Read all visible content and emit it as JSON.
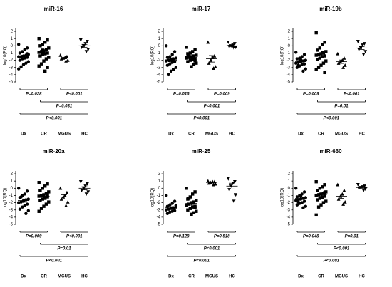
{
  "chart_data": [
    {
      "type": "scatter",
      "title": "miR-16",
      "ylabel": "log10(RQ)",
      "ylim": [
        -5,
        2.4
      ],
      "yticks": [
        2,
        1,
        0,
        -1,
        -2,
        -3,
        -4,
        -5
      ],
      "series": [
        {
          "name": "Dx",
          "marker": "circle",
          "values": [
            0.2,
            -0.3,
            -0.5,
            -0.8,
            -1.0,
            -1.2,
            -1.3,
            -1.4,
            -1.5,
            -1.5,
            -1.6,
            -1.7,
            -1.8,
            -2.0,
            -2.2,
            -2.4,
            -2.6,
            -2.9,
            -3.2,
            -1.1
          ],
          "mean": -1.5,
          "sem": 0.2
        },
        {
          "name": "CR",
          "marker": "square",
          "values": [
            1.0,
            0.8,
            0.5,
            0.2,
            0,
            -0.3,
            -0.5,
            -0.7,
            -0.8,
            -0.9,
            -1.0,
            -1.1,
            -1.2,
            -1.4,
            -1.6,
            -1.8,
            -2.1,
            -2.5,
            -2.8,
            -3.0,
            -3.5,
            -0.6
          ],
          "mean": -1.0,
          "sem": 0.22
        },
        {
          "name": "MGUS",
          "marker": "triangle-up",
          "values": [
            -1.3,
            -1.5,
            -1.6,
            -1.7,
            -1.8,
            -2.0,
            -2.1
          ],
          "mean": -1.7,
          "sem": 0.1
        },
        {
          "name": "HC",
          "marker": "triangle-down",
          "values": [
            0.8,
            0.6,
            0.3,
            0,
            -0.2,
            -0.5,
            -0.8
          ],
          "mean": 0,
          "sem": 0.2
        }
      ],
      "comparisons": [
        {
          "label": "P=0.028"
        },
        {
          "label": "P<0.001"
        },
        {
          "label": "P=0.031"
        },
        {
          "label": "P<0.001"
        }
      ]
    },
    {
      "type": "scatter",
      "title": "miR-17",
      "ylabel": "log10(RQ)",
      "ylim": [
        -5,
        2.4
      ],
      "yticks": [
        2,
        1,
        0,
        -1,
        -2,
        -3,
        -4,
        -5
      ],
      "series": [
        {
          "name": "Dx",
          "marker": "circle",
          "values": [
            0,
            -0.8,
            -1.2,
            -1.5,
            -1.6,
            -1.7,
            -1.8,
            -1.9,
            -2.0,
            -2.1,
            -2.2,
            -2.3,
            -2.5,
            -2.7,
            -3.0,
            -3.3,
            -3.5,
            -4.0
          ],
          "mean": -2.0,
          "sem": 0.2
        },
        {
          "name": "CR",
          "marker": "square",
          "values": [
            -0.2,
            -0.5,
            -0.8,
            -1.0,
            -1.1,
            -1.3,
            -1.4,
            -1.5,
            -1.6,
            -1.7,
            -1.8,
            -1.9,
            -2.0,
            -2.2,
            -2.4,
            -2.6,
            -2.9,
            -1.2,
            -1.6,
            -2.1
          ],
          "mean": -1.6,
          "sem": 0.15
        },
        {
          "name": "MGUS",
          "marker": "triangle-up",
          "values": [
            0.5,
            -1.4,
            -1.6,
            -2.0,
            -2.4,
            -2.9,
            -3.1
          ],
          "mean": -1.8,
          "sem": 0.45
        },
        {
          "name": "HC",
          "marker": "triangle-down",
          "values": [
            0.5,
            0.3,
            0.1,
            0,
            -0.1,
            -0.2,
            -0.3
          ],
          "mean": 0,
          "sem": 0.1
        }
      ],
      "comparisons": [
        {
          "label": "P=0.016"
        },
        {
          "label": "P=0.009"
        },
        {
          "label": "P<0.001"
        },
        {
          "label": "P<0.001"
        }
      ]
    },
    {
      "type": "scatter",
      "title": "miR-19b",
      "ylabel": "log10(RQ)",
      "ylim": [
        -5,
        2.4
      ],
      "yticks": [
        2,
        1,
        0,
        -1,
        -2,
        -3,
        -4,
        -5
      ],
      "series": [
        {
          "name": "Dx",
          "marker": "circle",
          "values": [
            -0.9,
            -1.2,
            -1.5,
            -1.7,
            -1.8,
            -2.0,
            -2.1,
            -2.2,
            -2.3,
            -2.4,
            -2.5,
            -2.6,
            -2.8,
            -3.0,
            -3.2,
            -3.5,
            -1.9,
            -2.7
          ],
          "mean": -2.2,
          "sem": 0.17
        },
        {
          "name": "CR",
          "marker": "square",
          "values": [
            1.8,
            0.5,
            0.2,
            -0.3,
            -0.6,
            -0.8,
            -1.0,
            -1.1,
            -1.2,
            -1.3,
            -1.4,
            -1.5,
            -1.7,
            -1.9,
            -2.1,
            -2.4,
            -2.7,
            -3.0,
            -3.3,
            -3.7,
            -0.9
          ],
          "mean": -1.4,
          "sem": 0.25
        },
        {
          "name": "MGUS",
          "marker": "triangle-up",
          "values": [
            -1.1,
            -1.7,
            -2.0,
            -2.2,
            -2.4,
            -2.7,
            -3.0
          ],
          "mean": -2.2,
          "sem": 0.24
        },
        {
          "name": "HC",
          "marker": "triangle-down",
          "values": [
            0.6,
            0.3,
            0.1,
            -0.3,
            -0.5,
            -0.8,
            -1.2
          ],
          "mean": -0.3,
          "sem": 0.2
        }
      ],
      "comparisons": [
        {
          "label": "P=0.009"
        },
        {
          "label": "P<0.001"
        },
        {
          "label": "P=0.01"
        },
        {
          "label": "P<0.001"
        }
      ]
    },
    {
      "type": "scatter",
      "title": "miR-20a",
      "ylabel": "log10(RQ)",
      "ylim": [
        -5,
        2.4
      ],
      "yticks": [
        2,
        1,
        0,
        -1,
        -2,
        -3,
        -4,
        -5
      ],
      "series": [
        {
          "name": "Dx",
          "marker": "circle",
          "values": [
            0,
            -0.4,
            -0.8,
            -1.0,
            -1.3,
            -1.5,
            -1.6,
            -1.8,
            -1.9,
            -2.0,
            -2.2,
            -2.4,
            -2.6,
            -2.9,
            -3.1,
            -3.5,
            -1.7,
            -1.2
          ],
          "mean": -1.7,
          "sem": 0.22
        },
        {
          "name": "CR",
          "marker": "square",
          "values": [
            0.8,
            0.6,
            0.3,
            0,
            -0.3,
            -0.5,
            -0.7,
            -0.9,
            -1.0,
            -1.1,
            -1.2,
            -1.3,
            -1.5,
            -1.7,
            -1.9,
            -2.2,
            -2.5,
            -2.8,
            -3.2,
            -0.8,
            -1.4
          ],
          "mean": -1.1,
          "sem": 0.22
        },
        {
          "name": "MGUS",
          "marker": "triangle-up",
          "values": [
            0,
            -0.6,
            -1.0,
            -1.2,
            -1.5,
            -1.9,
            -2.4
          ],
          "mean": -1.2,
          "sem": 0.3
        },
        {
          "name": "HC",
          "marker": "triangle-down",
          "values": [
            0.9,
            0.6,
            0.3,
            0,
            -0.3,
            -0.5,
            -0.8
          ],
          "mean": 0,
          "sem": 0.22
        }
      ],
      "comparisons": [
        {
          "label": "P=0.009"
        },
        {
          "label": "P<0.001"
        },
        {
          "label": "P=0.01"
        },
        {
          "label": "P<0.001"
        }
      ]
    },
    {
      "type": "scatter",
      "title": "miR-25",
      "ylabel": "log10(RQ)",
      "ylim": [
        -5,
        2.4
      ],
      "yticks": [
        2,
        1,
        0,
        -1,
        -2,
        -3,
        -4,
        -5
      ],
      "series": [
        {
          "name": "Dx",
          "marker": "circle",
          "values": [
            -1.0,
            -1.8,
            -2.1,
            -2.3,
            -2.5,
            -2.6,
            -2.7,
            -2.8,
            -2.9,
            -3.0,
            -3.1,
            -3.2,
            -3.3,
            -3.5,
            -2.4,
            -2.8
          ],
          "mean": -2.7,
          "sem": 0.15
        },
        {
          "name": "CR",
          "marker": "square",
          "values": [
            0,
            -0.5,
            -0.8,
            -1.2,
            -1.5,
            -1.7,
            -1.9,
            -2.0,
            -2.2,
            -2.4,
            -2.5,
            -2.6,
            -2.8,
            -3.0,
            -3.2,
            -3.4,
            -3.6,
            -1.4,
            -2.3,
            -2.7
          ],
          "mean": -2.1,
          "sem": 0.22
        },
        {
          "name": "MGUS",
          "marker": "triangle-up",
          "values": [
            1.0,
            0.9,
            0.9,
            0.8,
            0.7,
            0.6,
            0.5
          ],
          "mean": 0.8,
          "sem": 0.06
        },
        {
          "name": "HC",
          "marker": "triangle-down",
          "values": [
            1.3,
            0.9,
            0.7,
            0.3,
            -0.2,
            -0.9,
            -1.8
          ],
          "mean": 0.3,
          "sem": 0.4
        }
      ],
      "comparisons": [
        {
          "label": "P=0.128"
        },
        {
          "label": "P=0.518"
        },
        {
          "label": "P<0.001"
        },
        {
          "label": "P<0.001"
        }
      ]
    },
    {
      "type": "scatter",
      "title": "miR-660",
      "ylabel": "log10(RQ)",
      "ylim": [
        -5,
        2.4
      ],
      "yticks": [
        2,
        1,
        0,
        -1,
        -2,
        -3,
        -4,
        -5
      ],
      "series": [
        {
          "name": "Dx",
          "marker": "circle",
          "values": [
            0,
            -0.5,
            -0.8,
            -1.0,
            -1.2,
            -1.3,
            -1.4,
            -1.5,
            -1.6,
            -1.7,
            -1.8,
            -2.0,
            -2.1,
            -2.3,
            -2.5,
            -2.7,
            -1.1,
            -1.9
          ],
          "mean": -1.4,
          "sem": 0.15
        },
        {
          "name": "CR",
          "marker": "square",
          "values": [
            0.9,
            0.5,
            0.2,
            0,
            -0.3,
            -0.5,
            -0.7,
            -0.8,
            -0.9,
            -1.0,
            -1.1,
            -1.2,
            -1.4,
            -1.6,
            -1.8,
            -2.0,
            -2.3,
            -2.6,
            -3.7,
            -0.6,
            -1.3
          ],
          "mean": -0.9,
          "sem": 0.2
        },
        {
          "name": "MGUS",
          "marker": "triangle-up",
          "values": [
            0.5,
            -0.3,
            -0.8,
            -1.1,
            -1.5,
            -1.9,
            -2.2
          ],
          "mean": -1.1,
          "sem": 0.3
        },
        {
          "name": "HC",
          "marker": "triangle-down",
          "values": [
            0.5,
            0.3,
            0.2,
            0.1,
            0,
            -0.1,
            -0.3
          ],
          "mean": 0.1,
          "sem": 0.1
        }
      ],
      "comparisons": [
        {
          "label": "P=0.048"
        },
        {
          "label": "P=0.01"
        },
        {
          "label": "P<0.001"
        },
        {
          "label": "P<0.001"
        }
      ]
    }
  ]
}
